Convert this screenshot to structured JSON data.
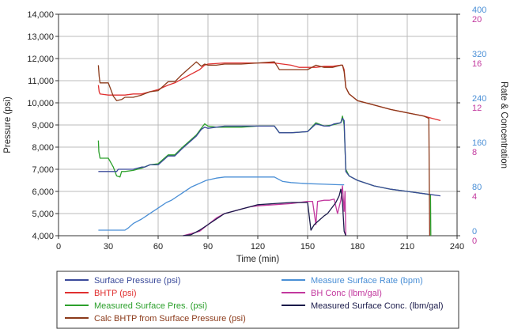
{
  "chart_data": {
    "type": "line",
    "xlabel": "Time (min)",
    "ylabel_left": "Pressure (psi)",
    "ylabel_right": "Rate & Concentration",
    "x_ticks": [
      0,
      30,
      60,
      90,
      120,
      150,
      180,
      210,
      240
    ],
    "x_range": [
      0,
      240
    ],
    "y_left_ticks": [
      "4,000",
      "5,000",
      "6,000",
      "7,000",
      "8,000",
      "9,000",
      "10,000",
      "11,000",
      "12,000",
      "13,000",
      "14,000"
    ],
    "y_left_range": [
      4000,
      14000
    ],
    "y_right_rate_ticks": [
      0,
      80,
      160,
      240,
      320,
      400
    ],
    "y_right_rate_range": [
      0,
      400
    ],
    "y_right_conc_ticks": [
      0,
      4,
      8,
      12,
      16,
      20
    ],
    "y_right_conc_range": [
      0,
      20
    ],
    "grid": true,
    "legend_position": "bottom",
    "colors": {
      "rate_axis": "#4a8fd6",
      "conc_axis": "#c2389e",
      "grid": "#bbbbbb"
    },
    "series": [
      {
        "name": "Surface Pressure (psi)",
        "axis": "pressure",
        "color": "#3a4a9a",
        "x": [
          24,
          24.5,
          30,
          35,
          36,
          45,
          50,
          52,
          55,
          60,
          63,
          66,
          70,
          74,
          77,
          80,
          83,
          86,
          88,
          90,
          95,
          100,
          110,
          120,
          130,
          133,
          140,
          150,
          155,
          160,
          163,
          166,
          170,
          171,
          172,
          173,
          175,
          180,
          190,
          200,
          210,
          220,
          225,
          230
        ],
        "y": [
          6900,
          6900,
          6900,
          6900,
          7000,
          7000,
          7100,
          7100,
          7200,
          7200,
          7400,
          7600,
          7600,
          7900,
          8100,
          8300,
          8500,
          8800,
          8900,
          8850,
          8900,
          8950,
          8950,
          8950,
          8950,
          8650,
          8650,
          8700,
          9050,
          8950,
          8950,
          9050,
          9100,
          9300,
          9200,
          6900,
          6700,
          6500,
          6250,
          6100,
          6000,
          5900,
          5850,
          5800
        ]
      },
      {
        "name": "BHTP (psi)",
        "axis": "pressure",
        "color": "#e03030",
        "x": [
          24,
          24.5,
          25,
          30,
          35,
          40,
          45,
          50,
          55,
          60,
          63,
          66,
          70,
          75,
          80,
          85,
          88,
          90,
          100,
          110,
          120,
          130,
          140,
          145,
          150,
          155,
          160,
          165,
          170,
          171,
          172,
          173,
          175,
          180,
          190,
          200,
          210,
          220,
          225,
          230
        ],
        "y": [
          10800,
          10500,
          10400,
          10350,
          10350,
          10350,
          10400,
          10400,
          10500,
          10600,
          10700,
          10800,
          10900,
          11100,
          11300,
          11500,
          11700,
          11750,
          11800,
          11800,
          11800,
          11800,
          11700,
          11600,
          11600,
          11600,
          11650,
          11650,
          11700,
          11700,
          11500,
          10700,
          10400,
          10100,
          9900,
          9700,
          9550,
          9400,
          9300,
          9200
        ]
      },
      {
        "name": "Measured Surface Pres. (psi)",
        "axis": "pressure",
        "color": "#2ca02c",
        "x": [
          24,
          24.3,
          25,
          28,
          30,
          33,
          35,
          37,
          38,
          40,
          45,
          50,
          55,
          60,
          63,
          66,
          70,
          74,
          77,
          80,
          83,
          86,
          88,
          90,
          95,
          100,
          110,
          120,
          130,
          133,
          140,
          150,
          155,
          160,
          165,
          170,
          171,
          172,
          173,
          175,
          180,
          190,
          200,
          210,
          220,
          224,
          224.2
        ],
        "y": [
          8300,
          7800,
          7500,
          7500,
          7500,
          7100,
          6700,
          6650,
          6900,
          6900,
          6950,
          7050,
          7200,
          7250,
          7450,
          7650,
          7650,
          7950,
          8150,
          8350,
          8550,
          8850,
          9050,
          8950,
          8900,
          8900,
          8900,
          8950,
          8950,
          8650,
          8650,
          8700,
          9100,
          8950,
          9000,
          9100,
          9400,
          9000,
          7000,
          6700,
          6500,
          6250,
          6100,
          6000,
          5900,
          5850,
          4000
        ]
      },
      {
        "name": "Calc BHTP from Surface Pressure (psi)",
        "axis": "pressure",
        "color": "#8b3a1a",
        "x": [
          24,
          24.5,
          25,
          28,
          30,
          33,
          35,
          38,
          40,
          45,
          50,
          55,
          60,
          63,
          66,
          70,
          74,
          77,
          80,
          83,
          86,
          88,
          90,
          95,
          100,
          110,
          120,
          130,
          133,
          140,
          150,
          155,
          160,
          165,
          170,
          171,
          172,
          173,
          175,
          180,
          190,
          200,
          210,
          220,
          223,
          223.5
        ],
        "y": [
          11700,
          11200,
          10900,
          10900,
          10900,
          10300,
          10100,
          10150,
          10250,
          10250,
          10350,
          10500,
          10550,
          10750,
          10950,
          10950,
          11250,
          11450,
          11650,
          11850,
          11650,
          11750,
          11700,
          11700,
          11750,
          11750,
          11800,
          11850,
          11500,
          11500,
          11500,
          11700,
          11600,
          11600,
          11700,
          11700,
          11400,
          10700,
          10400,
          10100,
          9900,
          9700,
          9550,
          9400,
          9300,
          4000
        ]
      },
      {
        "name": "Measure Surface Rate (bpm)",
        "axis": "rate",
        "color": "#4a8fd6",
        "x": [
          24,
          30,
          40,
          42,
          45,
          50,
          53,
          56,
          59,
          62,
          65,
          68,
          71,
          74,
          77,
          80,
          83,
          86,
          89,
          92,
          95,
          100,
          110,
          130,
          135,
          140,
          150,
          160,
          170,
          172
        ],
        "y": [
          10,
          10,
          10,
          14,
          22,
          30,
          36,
          42,
          48,
          54,
          60,
          64,
          70,
          76,
          82,
          88,
          92,
          96,
          100,
          102,
          104,
          106,
          106,
          106,
          98,
          96,
          94,
          93,
          92,
          92
        ]
      },
      {
        "name": "BH Conc (lbm/gal)",
        "axis": "conc",
        "color": "#c2389e",
        "x": [
          75,
          80,
          85,
          90,
          95,
          100,
          105,
          110,
          115,
          120,
          130,
          140,
          150,
          153,
          155,
          156,
          160,
          163,
          166,
          168,
          170,
          171,
          172,
          172.5,
          173
        ],
        "y": [
          0.0,
          0.2,
          0.4,
          1.0,
          1.6,
          2.0,
          2.2,
          2.4,
          2.6,
          2.7,
          2.8,
          2.9,
          3.1,
          3.1,
          1.0,
          3.1,
          3.2,
          3.2,
          3.3,
          2.0,
          3.2,
          4.5,
          2.2,
          4.0,
          0.0
        ]
      },
      {
        "name": "Measured Surface Conc. (lbm/gal)",
        "axis": "conc",
        "color": "#1a1a4a",
        "x": [
          75,
          80,
          85,
          90,
          95,
          100,
          105,
          110,
          115,
          120,
          130,
          140,
          150,
          152,
          154,
          157,
          160,
          162,
          165,
          167,
          169,
          170,
          171,
          172,
          173
        ],
        "y": [
          0.0,
          0.1,
          0.5,
          1.0,
          1.5,
          2.0,
          2.2,
          2.4,
          2.6,
          2.8,
          2.9,
          3.0,
          3.0,
          0.5,
          1.0,
          1.4,
          1.8,
          2.0,
          2.6,
          3.0,
          3.6,
          4.2,
          3.0,
          0.4,
          0.0
        ]
      }
    ]
  }
}
